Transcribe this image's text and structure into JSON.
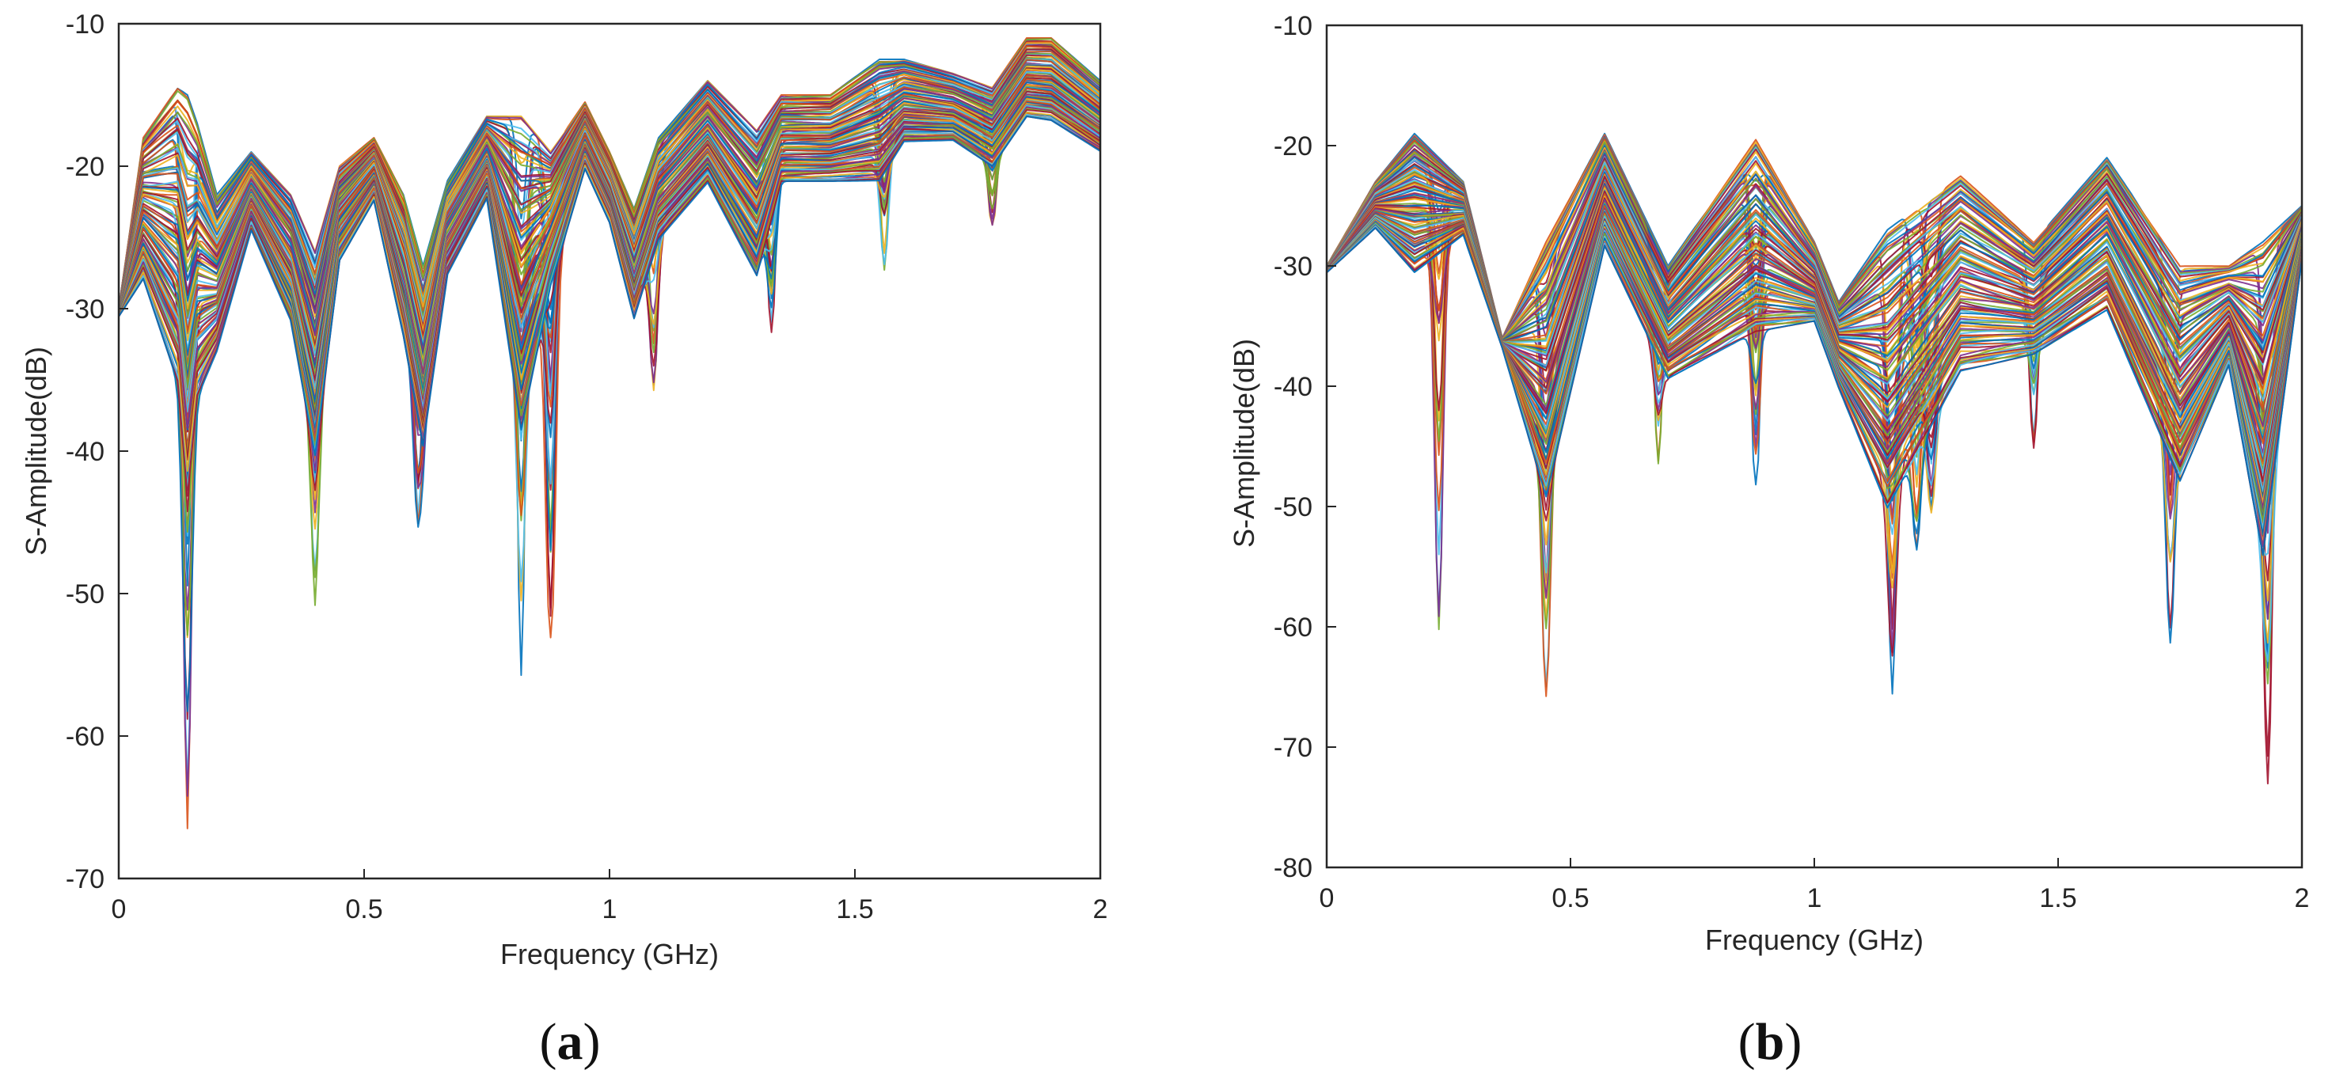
{
  "chart_data": [
    {
      "type": "line",
      "caption_open": "(",
      "caption_letter": "a",
      "caption_close": ")",
      "title": "",
      "xlabel": "Frequency (GHz)",
      "ylabel": "S-Amplitude(dB)",
      "xlim": [
        0,
        2
      ],
      "ylim": [
        -70,
        -10
      ],
      "xticks": [
        0,
        0.5,
        1,
        1.5,
        2
      ],
      "xtick_labels": [
        "0",
        "0.5",
        "1",
        "1.5",
        "2"
      ],
      "yticks": [
        -10,
        -20,
        -30,
        -40,
        -50,
        -60,
        -70
      ],
      "ytick_labels": [
        "-10",
        "-20",
        "-30",
        "-40",
        "-50",
        "-60",
        "-70"
      ],
      "grid": false,
      "num_series": 120,
      "series_note": "About 120 overlapping simulated S-parameter traces; values below are approximate envelope points read from the plot.",
      "envelope": {
        "x": [
          0,
          0.05,
          0.12,
          0.14,
          0.16,
          0.2,
          0.27,
          0.35,
          0.4,
          0.45,
          0.52,
          0.58,
          0.62,
          0.67,
          0.75,
          0.82,
          0.88,
          0.95,
          1.0,
          1.05,
          1.1,
          1.2,
          1.3,
          1.35,
          1.45,
          1.55,
          1.6,
          1.7,
          1.78,
          1.85,
          1.9,
          2.0
        ],
        "upper": [
          -30,
          -18,
          -14.5,
          -15,
          -17,
          -22,
          -19,
          -22,
          -26,
          -20,
          -18,
          -22,
          -27,
          -21,
          -16.5,
          -16.5,
          -19,
          -15.5,
          -19,
          -23,
          -18,
          -14,
          -17.5,
          -15,
          -15,
          -12.5,
          -12.5,
          -13.5,
          -14.5,
          -11,
          -11,
          -14
        ],
        "lower": [
          -31,
          -36,
          -52,
          -66.5,
          -52,
          -42,
          -29,
          -38,
          -52,
          -32,
          -26,
          -40,
          -50,
          -33,
          -27,
          -56.5,
          -36,
          -24,
          -28,
          -37,
          -31,
          -27,
          -36,
          -26,
          -26,
          -28,
          -23,
          -22,
          -24.5,
          -21,
          -21.5,
          -23
        ]
      },
      "dips": [
        {
          "x": 0.14,
          "min": -66.5
        },
        {
          "x": 0.4,
          "min": -52
        },
        {
          "x": 0.61,
          "min": -50
        },
        {
          "x": 0.82,
          "min": -56.5
        },
        {
          "x": 0.88,
          "min": -53.5
        },
        {
          "x": 1.09,
          "min": -37
        },
        {
          "x": 1.33,
          "min": -32.5
        },
        {
          "x": 1.56,
          "min": -27.5
        },
        {
          "x": 1.78,
          "min": -24.5
        }
      ]
    },
    {
      "type": "line",
      "caption_open": "(",
      "caption_letter": "b",
      "caption_close": ")",
      "title": "",
      "xlabel": "Frequency (GHz)",
      "ylabel": "S-Amplitude(dB)",
      "xlim": [
        0,
        2
      ],
      "ylim": [
        -80,
        -10
      ],
      "xticks": [
        0,
        0.5,
        1,
        1.5,
        2
      ],
      "xtick_labels": [
        "0",
        "0.5",
        "1",
        "1.5",
        "2"
      ],
      "yticks": [
        -10,
        -20,
        -30,
        -40,
        -50,
        -60,
        -70,
        -80
      ],
      "ytick_labels": [
        "-10",
        "-20",
        "-30",
        "-40",
        "-50",
        "-60",
        "-70",
        "-80"
      ],
      "grid": false,
      "num_series": 120,
      "series_note": "About 120 overlapping simulated S-parameter traces; values below are approximate envelope points read from the plot.",
      "envelope": {
        "x": [
          0,
          0.1,
          0.18,
          0.28,
          0.36,
          0.45,
          0.57,
          0.7,
          0.88,
          1.0,
          1.05,
          1.15,
          1.3,
          1.45,
          1.6,
          1.75,
          1.85,
          1.92,
          2.0
        ],
        "upper": [
          -30,
          -23,
          -19,
          -23,
          -36,
          -28,
          -19,
          -30,
          -19.5,
          -28,
          -33,
          -27,
          -22.5,
          -28,
          -21,
          -30,
          -30,
          -28,
          -25
        ],
        "lower": [
          -31,
          -30,
          -40,
          -31,
          -37.5,
          -66.5,
          -36,
          -47,
          -48.5,
          -40,
          -46,
          -69,
          -52,
          -45,
          -44,
          -62.5,
          -45,
          -75.5,
          -33
        ]
      },
      "dips": [
        {
          "x": 0.23,
          "min": -60.5
        },
        {
          "x": 0.45,
          "min": -66.5
        },
        {
          "x": 0.68,
          "min": -46.5
        },
        {
          "x": 0.88,
          "min": -48.5
        },
        {
          "x": 1.16,
          "min": -69
        },
        {
          "x": 1.21,
          "min": -62.5
        },
        {
          "x": 1.24,
          "min": -51.5
        },
        {
          "x": 1.45,
          "min": -45.5
        },
        {
          "x": 1.73,
          "min": -62.5
        },
        {
          "x": 1.93,
          "min": -75.5
        }
      ]
    }
  ]
}
